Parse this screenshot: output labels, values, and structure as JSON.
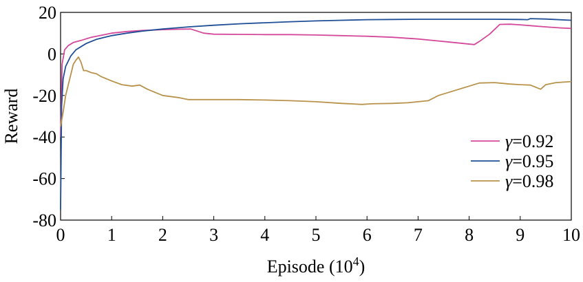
{
  "chart_data": {
    "type": "line",
    "xlabel": "Episode (10",
    "xlabel_sup": "4",
    "xlabel_suffix": ")",
    "ylabel": "Reward",
    "xlim": [
      0,
      10
    ],
    "ylim": [
      -80,
      20
    ],
    "xticks": [
      "0",
      "1",
      "2",
      "3",
      "4",
      "5",
      "6",
      "7",
      "8",
      "9",
      "10"
    ],
    "yticks": [
      "20",
      "0",
      "-20",
      "-40",
      "-60",
      "-80"
    ],
    "grid": false,
    "legend_position": "right",
    "series": [
      {
        "name": "γ=0.92",
        "legend_symbol": "γ",
        "legend_value": "=0.92",
        "color": "#d4489a",
        "points": [
          [
            0,
            -40
          ],
          [
            0.03,
            -5
          ],
          [
            0.08,
            2
          ],
          [
            0.15,
            4
          ],
          [
            0.25,
            5.5
          ],
          [
            0.4,
            6.5
          ],
          [
            0.6,
            8
          ],
          [
            0.8,
            9
          ],
          [
            1,
            10
          ],
          [
            1.3,
            10.8
          ],
          [
            1.6,
            11.3
          ],
          [
            2,
            11.7
          ],
          [
            2.3,
            11.9
          ],
          [
            2.55,
            12
          ],
          [
            2.8,
            10
          ],
          [
            3,
            9.5
          ],
          [
            3.5,
            9.4
          ],
          [
            4,
            9.3
          ],
          [
            4.5,
            9.3
          ],
          [
            5,
            9.1
          ],
          [
            5.5,
            8.8
          ],
          [
            6,
            8.5
          ],
          [
            6.5,
            8
          ],
          [
            7,
            7.2
          ],
          [
            7.5,
            6
          ],
          [
            7.9,
            5
          ],
          [
            8.1,
            4.5
          ],
          [
            8.2,
            6
          ],
          [
            8.4,
            9.5
          ],
          [
            8.6,
            14.2
          ],
          [
            8.8,
            14.3
          ],
          [
            9,
            14
          ],
          [
            9.2,
            13.6
          ],
          [
            9.5,
            13
          ],
          [
            9.8,
            12.5
          ],
          [
            10,
            12.3
          ]
        ]
      },
      {
        "name": "γ=0.95",
        "legend_symbol": "γ",
        "legend_value": "=0.95",
        "color": "#1f4e96",
        "points": [
          [
            0,
            -75
          ],
          [
            0.02,
            -25
          ],
          [
            0.05,
            -12
          ],
          [
            0.1,
            -6
          ],
          [
            0.2,
            -1
          ],
          [
            0.3,
            2
          ],
          [
            0.5,
            5
          ],
          [
            0.7,
            7
          ],
          [
            1,
            8.8
          ],
          [
            1.3,
            10
          ],
          [
            1.6,
            11
          ],
          [
            2,
            12
          ],
          [
            2.5,
            13
          ],
          [
            3,
            13.8
          ],
          [
            3.5,
            14.5
          ],
          [
            4,
            15
          ],
          [
            4.5,
            15.5
          ],
          [
            5,
            15.9
          ],
          [
            5.5,
            16.2
          ],
          [
            6,
            16.5
          ],
          [
            6.5,
            16.6
          ],
          [
            7,
            16.7
          ],
          [
            7.5,
            16.7
          ],
          [
            8,
            16.7
          ],
          [
            8.5,
            16.7
          ],
          [
            9,
            16.6
          ],
          [
            9.15,
            16.5
          ],
          [
            9.2,
            17
          ],
          [
            9.5,
            16.8
          ],
          [
            10,
            16.2
          ]
        ]
      },
      {
        "name": "γ=0.98",
        "legend_symbol": "γ",
        "legend_value": "=0.98",
        "color": "#b8924a",
        "points": [
          [
            0,
            -35
          ],
          [
            0.05,
            -28
          ],
          [
            0.1,
            -20
          ],
          [
            0.15,
            -15
          ],
          [
            0.2,
            -10
          ],
          [
            0.25,
            -5
          ],
          [
            0.3,
            -3
          ],
          [
            0.35,
            -1.5
          ],
          [
            0.4,
            -4
          ],
          [
            0.45,
            -8
          ],
          [
            0.5,
            -8
          ],
          [
            0.6,
            -9
          ],
          [
            0.7,
            -9.5
          ],
          [
            0.8,
            -11
          ],
          [
            1,
            -13
          ],
          [
            1.2,
            -14.8
          ],
          [
            1.4,
            -15.5
          ],
          [
            1.55,
            -15
          ],
          [
            1.7,
            -17
          ],
          [
            2,
            -20
          ],
          [
            2.3,
            -21
          ],
          [
            2.5,
            -22
          ],
          [
            3,
            -22
          ],
          [
            3.5,
            -22
          ],
          [
            4,
            -22.2
          ],
          [
            4.5,
            -22.5
          ],
          [
            5,
            -23
          ],
          [
            5.5,
            -23.8
          ],
          [
            5.9,
            -24.3
          ],
          [
            6.1,
            -24
          ],
          [
            6.5,
            -23.8
          ],
          [
            6.8,
            -23.5
          ],
          [
            7,
            -23
          ],
          [
            7.2,
            -22.5
          ],
          [
            7.4,
            -20
          ],
          [
            7.6,
            -18.5
          ],
          [
            8,
            -15.5
          ],
          [
            8.2,
            -14
          ],
          [
            8.5,
            -13.8
          ],
          [
            8.8,
            -14.5
          ],
          [
            9,
            -14.8
          ],
          [
            9.2,
            -15
          ],
          [
            9.4,
            -17
          ],
          [
            9.5,
            -14.8
          ],
          [
            9.7,
            -13.8
          ],
          [
            10,
            -13.3
          ]
        ]
      }
    ]
  }
}
